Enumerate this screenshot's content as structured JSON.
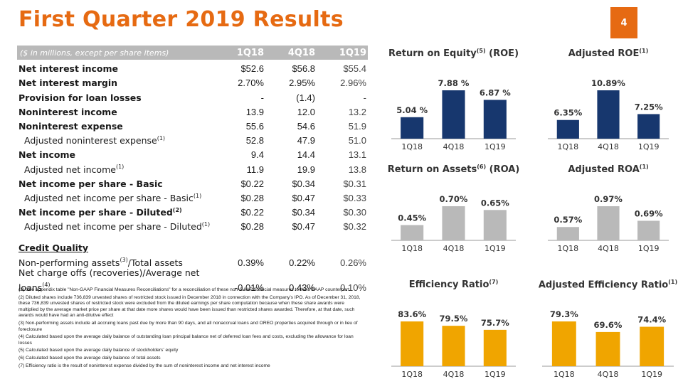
{
  "title": "First Quarter 2019 Results",
  "page_number": "4",
  "table": {
    "header": {
      "label": "($ in millions, except per share items)",
      "cols": [
        "1Q18",
        "4Q18",
        "1Q19"
      ]
    },
    "rows": [
      {
        "label": "Net interest income",
        "sup": "",
        "vals": [
          "$52.6",
          "$56.8",
          "$55.4"
        ]
      },
      {
        "label": "Net interest margin",
        "sup": "",
        "vals": [
          "2.70%",
          "2.95%",
          "2.96%"
        ]
      },
      {
        "label": "Provision for loan losses",
        "sup": "",
        "vals": [
          "-",
          "(1.4)",
          "-"
        ]
      },
      {
        "label": "Noninterest income",
        "sup": "",
        "vals": [
          "13.9",
          "12.0",
          "13.2"
        ]
      },
      {
        "label": "Noninterest expense",
        "sup": "",
        "vals": [
          "55.6",
          "54.6",
          "51.9"
        ]
      },
      {
        "label": "Adjusted noninterest expense",
        "sup": "(1)",
        "vals": [
          "52.8",
          "47.9",
          "51.0"
        ]
      },
      {
        "label": "Net income",
        "sup": "",
        "vals": [
          "9.4",
          "14.4",
          "13.1"
        ]
      },
      {
        "label": "Adjusted net income",
        "sup": "(1)",
        "vals": [
          "11.9",
          "19.9",
          "13.8"
        ]
      },
      {
        "label": "Net income per share - Basic",
        "sup": "",
        "vals": [
          "$0.22",
          "$0.34",
          "$0.31"
        ]
      },
      {
        "label": "Adjusted net income per share - Basic",
        "sup": "(1)",
        "vals": [
          "$0.28",
          "$0.47",
          "$0.33"
        ]
      },
      {
        "label": "Net income per share - Diluted",
        "sup": "(2)",
        "vals": [
          "$0.22",
          "$0.34",
          "$0.30"
        ]
      },
      {
        "label": "Adjusted net income per share - Diluted",
        "sup": "(1)",
        "vals": [
          "$0.28",
          "$0.47",
          "$0.32"
        ]
      }
    ],
    "credit_quality_label": "Credit Quality",
    "credit_rows": [
      {
        "label_a": "Non-performing assets",
        "sup": "(3)",
        "label_b": "/Total assets",
        "vals": [
          "0.39%",
          "0.22%",
          "0.26%"
        ]
      },
      {
        "label_a": "Net charge offs (recoveries)/Average net loans",
        "sup": "(4)",
        "label_b": "",
        "vals": [
          "-0.01%",
          "0.43%",
          "0.10%"
        ]
      }
    ]
  },
  "footnotes": [
    "(1) See appendix table \"Non-GAAP Financial Measures Reconciliations\" for a reconciliation of these non-GAAP financial measures to their GAAP counterpart",
    "(2) Diluted shares include 736,839 unvested shares of restricted stock issued in December 2018 in connection with the Company's IPO. As of December 31, 2018, these 736,839 unvested shares of restricted stock were excluded from the diluted earnings per share computation because when these share awards were multiplied by the average market price per share at that date more shares would have been issued than restricted shares awarded. Therefore, at that date, such awards would have had an anti-dilutive effect",
    "(3) Non-performing assets include all accruing loans past due by more than 90 days, and all nonaccrual loans and OREO properties acquired through or in lieu of foreclosure",
    "(4) Calculated based upon the average daily balance of outstanding loan principal balance net of deferred loan fees and costs, excluding the allowance for loan losses",
    "(5) Calculated based upon the average daily balance of stockholders' equity",
    "(6) Calculated based upon the average daily balance of total assets",
    "(7) Efficiency ratio is the result of noninterest expense divided by the sum of noninterest income and net interest income"
  ],
  "colors": {
    "accent": "#e66a12",
    "navy": "#17376e",
    "gray": "#b9b9b9",
    "gold": "#f0a500"
  },
  "chart_data": [
    {
      "type": "bar",
      "title": "Return on Equity",
      "title_sup": "(5)",
      "title_suffix": " (ROE)",
      "categories": [
        "1Q18",
        "4Q18",
        "1Q19"
      ],
      "values": [
        5.04,
        7.88,
        6.87
      ],
      "labels": [
        "5.04 %",
        "7.88 %",
        "6.87 %"
      ],
      "color": "#17376e"
    },
    {
      "type": "bar",
      "title": "Adjusted ROE",
      "title_sup": "(1)",
      "title_suffix": "",
      "categories": [
        "1Q18",
        "4Q18",
        "1Q19"
      ],
      "values": [
        6.35,
        10.89,
        7.25
      ],
      "labels": [
        "6.35%",
        "10.89%",
        "7.25%"
      ],
      "color": "#17376e"
    },
    {
      "type": "bar",
      "title": "Return on Assets",
      "title_sup": "(6)",
      "title_suffix": " (ROA)",
      "categories": [
        "1Q18",
        "4Q18",
        "1Q19"
      ],
      "values": [
        0.45,
        0.7,
        0.65
      ],
      "labels": [
        "0.45%",
        "0.70%",
        "0.65%"
      ],
      "color": "#b9b9b9"
    },
    {
      "type": "bar",
      "title": "Adjusted ROA",
      "title_sup": "(1)",
      "title_suffix": "",
      "categories": [
        "1Q18",
        "4Q18",
        "1Q19"
      ],
      "values": [
        0.57,
        0.97,
        0.69
      ],
      "labels": [
        "0.57%",
        "0.97%",
        "0.69%"
      ],
      "color": "#b9b9b9"
    },
    {
      "type": "bar",
      "title": "Efficiency Ratio",
      "title_sup": "(7)",
      "title_suffix": "",
      "categories": [
        "1Q18",
        "4Q18",
        "1Q19"
      ],
      "values": [
        83.6,
        79.5,
        75.7
      ],
      "labels": [
        "83.6%",
        "79.5%",
        "75.7%"
      ],
      "color": "#f0a500"
    },
    {
      "type": "bar",
      "title": "Adjusted Efficiency Ratio",
      "title_sup": "(1)",
      "title_suffix": "",
      "categories": [
        "1Q18",
        "4Q18",
        "1Q19"
      ],
      "values": [
        79.3,
        69.6,
        74.4
      ],
      "labels": [
        "79.3%",
        "69.6%",
        "74.4%"
      ],
      "color": "#f0a500"
    }
  ]
}
